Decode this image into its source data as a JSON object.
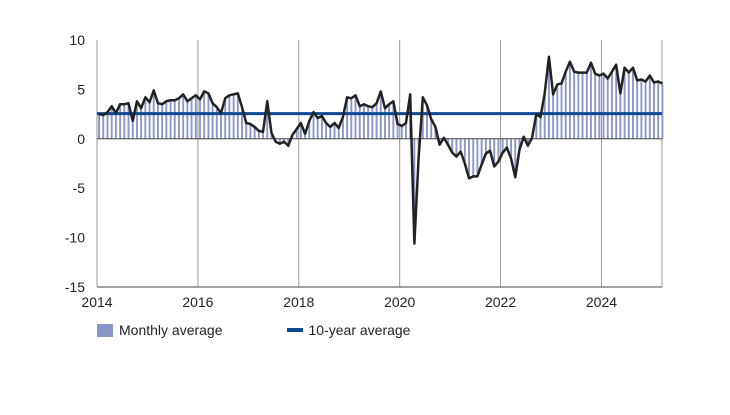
{
  "chart_data": {
    "type": "bar",
    "title": "",
    "xlabel": "",
    "ylabel": "",
    "ylim": [
      -15,
      10
    ],
    "yticks": [
      10,
      5,
      0,
      -5,
      -10,
      -15
    ],
    "xlim": [
      2014,
      2025.2
    ],
    "xticks": [
      2014,
      2016,
      2018,
      2020,
      2022,
      2024
    ],
    "grid": "vertical",
    "legend_placement": "bottom-left",
    "colors": {
      "bars": "#8a96c8",
      "line": "#222222",
      "average": "#0b4a94"
    },
    "series": [
      {
        "name": "Monthly average",
        "kind": "bar+line",
        "x": [
          2014.0,
          2014.083,
          2014.167,
          2014.25,
          2014.333,
          2014.417,
          2014.5,
          2014.583,
          2014.667,
          2014.75,
          2014.833,
          2014.917,
          2015.0,
          2015.083,
          2015.167,
          2015.25,
          2015.333,
          2015.417,
          2015.5,
          2015.583,
          2015.667,
          2015.75,
          2015.833,
          2015.917,
          2016.0,
          2016.083,
          2016.167,
          2016.25,
          2016.333,
          2016.417,
          2016.5,
          2016.583,
          2016.667,
          2016.75,
          2016.833,
          2016.917,
          2017.0,
          2017.083,
          2017.167,
          2017.25,
          2017.333,
          2017.417,
          2017.5,
          2017.583,
          2017.667,
          2017.75,
          2017.833,
          2017.917,
          2018.0,
          2018.083,
          2018.167,
          2018.25,
          2018.333,
          2018.417,
          2018.5,
          2018.583,
          2018.667,
          2018.75,
          2018.833,
          2018.917,
          2019.0,
          2019.083,
          2019.167,
          2019.25,
          2019.333,
          2019.417,
          2019.5,
          2019.583,
          2019.667,
          2019.75,
          2019.833,
          2019.917,
          2020.0,
          2020.083,
          2020.167,
          2020.25,
          2020.333,
          2020.417,
          2020.5,
          2020.583,
          2020.667,
          2020.75,
          2020.833,
          2020.917,
          2021.0,
          2021.083,
          2021.167,
          2021.25,
          2021.333,
          2021.417,
          2021.5,
          2021.583,
          2021.667,
          2021.75,
          2021.833,
          2021.917,
          2022.0,
          2022.083,
          2022.167,
          2022.25,
          2022.333,
          2022.417,
          2022.5,
          2022.583,
          2022.667,
          2022.75,
          2022.833,
          2022.917,
          2023.0,
          2023.083,
          2023.167,
          2023.25,
          2023.333,
          2023.417,
          2023.5,
          2023.583,
          2023.667,
          2023.75,
          2023.833,
          2023.917,
          2024.0,
          2024.083,
          2024.167,
          2024.25,
          2024.333,
          2024.417,
          2024.5,
          2024.583,
          2024.667,
          2024.75,
          2024.833,
          2024.917,
          2025.0,
          2025.083,
          2025.167
        ],
        "values": [
          2.5,
          2.4,
          2.7,
          3.3,
          2.6,
          3.5,
          3.5,
          3.6,
          1.8,
          3.8,
          3.1,
          4.2,
          3.7,
          4.9,
          3.6,
          3.5,
          3.8,
          3.9,
          3.9,
          4.1,
          4.5,
          3.8,
          4.1,
          4.4,
          4.0,
          4.8,
          4.6,
          3.6,
          3.2,
          2.6,
          4.1,
          4.4,
          4.5,
          4.6,
          3.2,
          1.6,
          1.5,
          1.2,
          0.8,
          0.7,
          3.8,
          0.6,
          -0.3,
          -0.5,
          -0.3,
          -0.7,
          0.4,
          1.0,
          1.6,
          0.5,
          1.8,
          2.7,
          2.1,
          2.3,
          1.6,
          1.2,
          1.6,
          1.1,
          2.2,
          4.2,
          4.1,
          4.4,
          3.3,
          3.5,
          3.3,
          3.2,
          3.6,
          4.8,
          3.1,
          3.5,
          3.8,
          1.5,
          1.3,
          1.6,
          4.5,
          -10.6,
          -2.0,
          4.2,
          3.4,
          2.0,
          1.2,
          -0.6,
          0.1,
          -0.6,
          -1.4,
          -1.8,
          -1.3,
          -2.5,
          -4.0,
          -3.8,
          -3.8,
          -2.6,
          -1.5,
          -1.2,
          -2.8,
          -2.3,
          -1.4,
          -0.9,
          -2.0,
          -3.9,
          -1.1,
          0.2,
          -0.7,
          0.1,
          2.5,
          2.2,
          4.6,
          8.3,
          4.5,
          5.5,
          5.6,
          6.8,
          7.8,
          6.8,
          6.7,
          6.7,
          6.7,
          7.7,
          6.6,
          6.4,
          6.6,
          6.1,
          6.8,
          7.5,
          4.6,
          7.2,
          6.7,
          7.2,
          5.9,
          6.0,
          5.8,
          6.4,
          5.7,
          5.8,
          5.6
        ]
      },
      {
        "name": "10-year average",
        "kind": "line",
        "value": 2.55
      }
    ]
  }
}
